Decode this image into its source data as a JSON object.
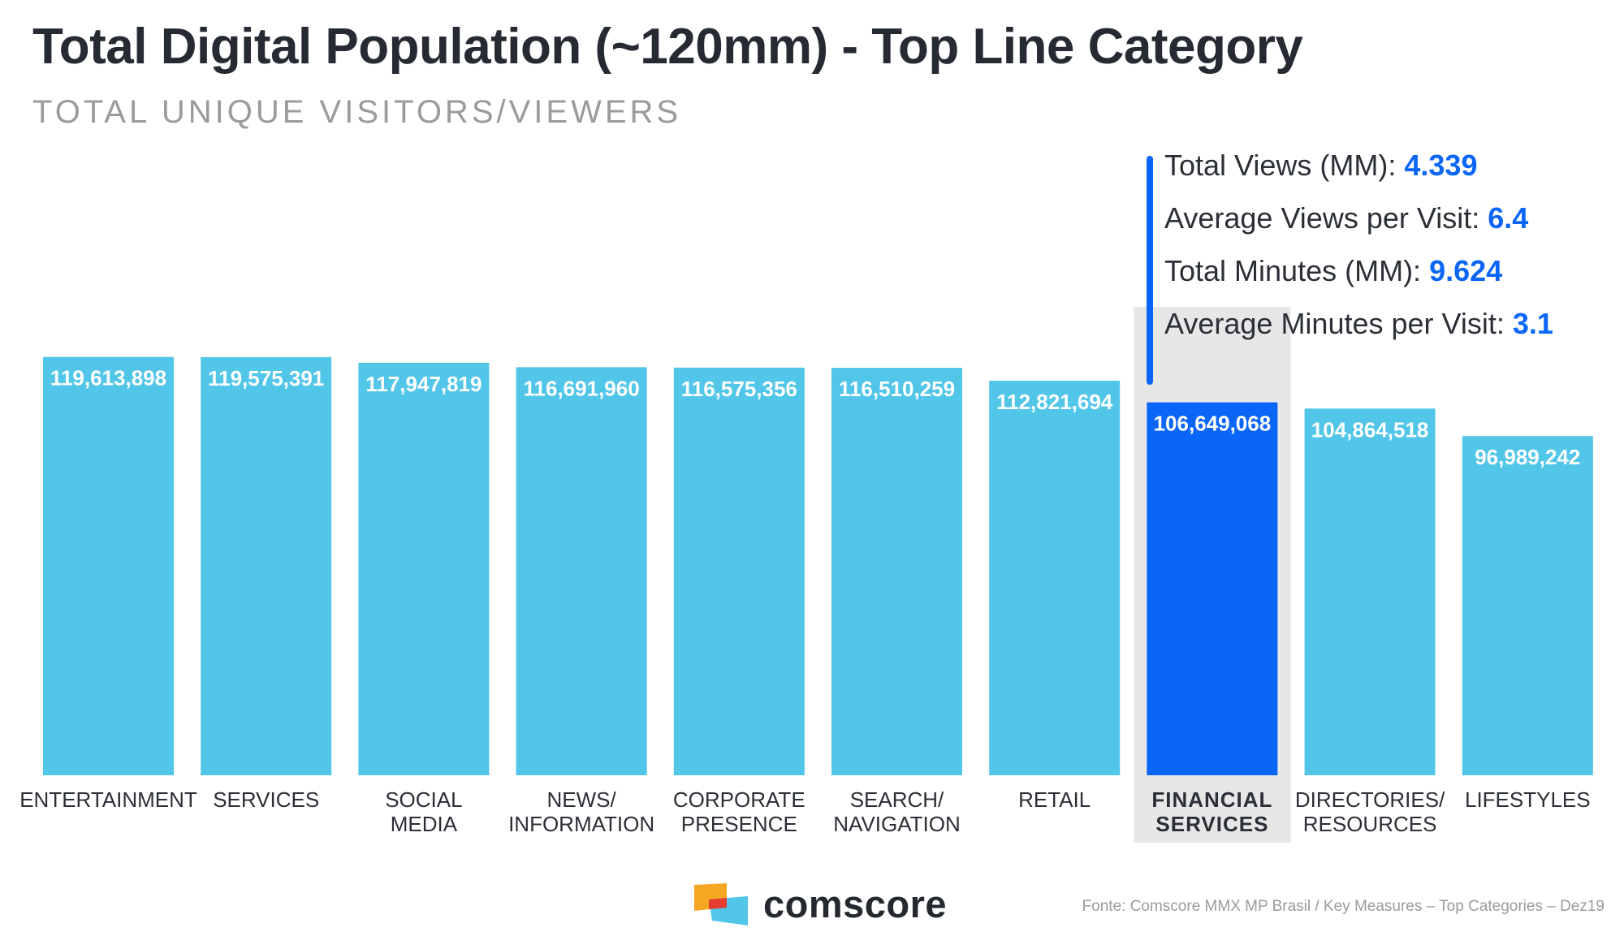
{
  "header": {
    "title": "Total Digital Population (~120mm) - Top Line Category",
    "subtitle": "TOTAL UNIQUE VISITORS/VIEWERS"
  },
  "chart_data": {
    "type": "bar",
    "title": "Total Digital Population (~120mm) - Top Line Category",
    "subtitle": "TOTAL UNIQUE VISITORS/VIEWERS",
    "categories": [
      [
        "ENTERTAINMENT"
      ],
      [
        "SERVICES"
      ],
      [
        "SOCIAL",
        "MEDIA"
      ],
      [
        "NEWS/",
        "INFORMATION"
      ],
      [
        "CORPORATE",
        "PRESENCE"
      ],
      [
        "SEARCH/",
        "NAVIGATION"
      ],
      [
        "RETAIL"
      ],
      [
        "FINANCIAL",
        "SERVICES"
      ],
      [
        "DIRECTORIES/",
        "RESOURCES"
      ],
      [
        "LIFESTYLES"
      ]
    ],
    "values": [
      119613898,
      119575391,
      117947819,
      116691960,
      116575356,
      116510259,
      112821694,
      106649068,
      104864518,
      96989242
    ],
    "value_labels": [
      "119,613,898",
      "119,575,391",
      "117,947,819",
      "116,691,960",
      "116,575,356",
      "116,510,259",
      "112,821,694",
      "106,649,068",
      "104,864,518",
      "96,989,242"
    ],
    "ylim": [
      0,
      130000000
    ],
    "grid": false,
    "legend": "none",
    "highlight_index": 7,
    "colors": {
      "bar": "#52c6e8",
      "highlight": "#0a66f7",
      "highlight_bg": "#e7e7e7",
      "label_text": "#ffffff"
    }
  },
  "stats": [
    {
      "label": "Total Views (MM): ",
      "value": "4.339"
    },
    {
      "label": "Average Views per Visit: ",
      "value": "6.4"
    },
    {
      "label": "Total Minutes (MM): ",
      "value": "9.624"
    },
    {
      "label": "Average Minutes per Visit: ",
      "value": "3.1"
    }
  ],
  "footer": {
    "brand": "comscore",
    "source": "Fonte: Comscore MMX MP Brasil / Key Measures – Top Categories – Dez19"
  },
  "logo": {
    "icon": "comscore-logo-icon",
    "colors": [
      "#f5a623",
      "#e63c2f",
      "#52c6e8"
    ]
  }
}
